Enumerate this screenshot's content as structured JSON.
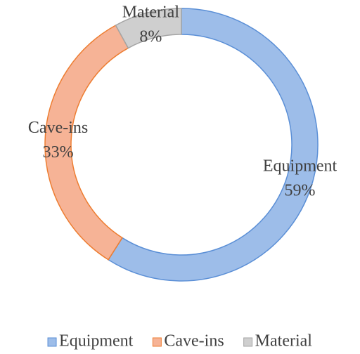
{
  "chart_data": {
    "type": "donut",
    "categories": [
      "Equipment",
      "Cave-ins",
      "Material"
    ],
    "values": [
      59,
      33,
      8
    ],
    "value_labels": [
      "59%",
      "33%",
      "8%"
    ],
    "colors": [
      "#9dbde9",
      "#f6b396",
      "#cfcfcf"
    ],
    "border_colors": [
      "#5b8fd6",
      "#ed7d31",
      "#a5a5a5"
    ],
    "legend": "bottom"
  }
}
